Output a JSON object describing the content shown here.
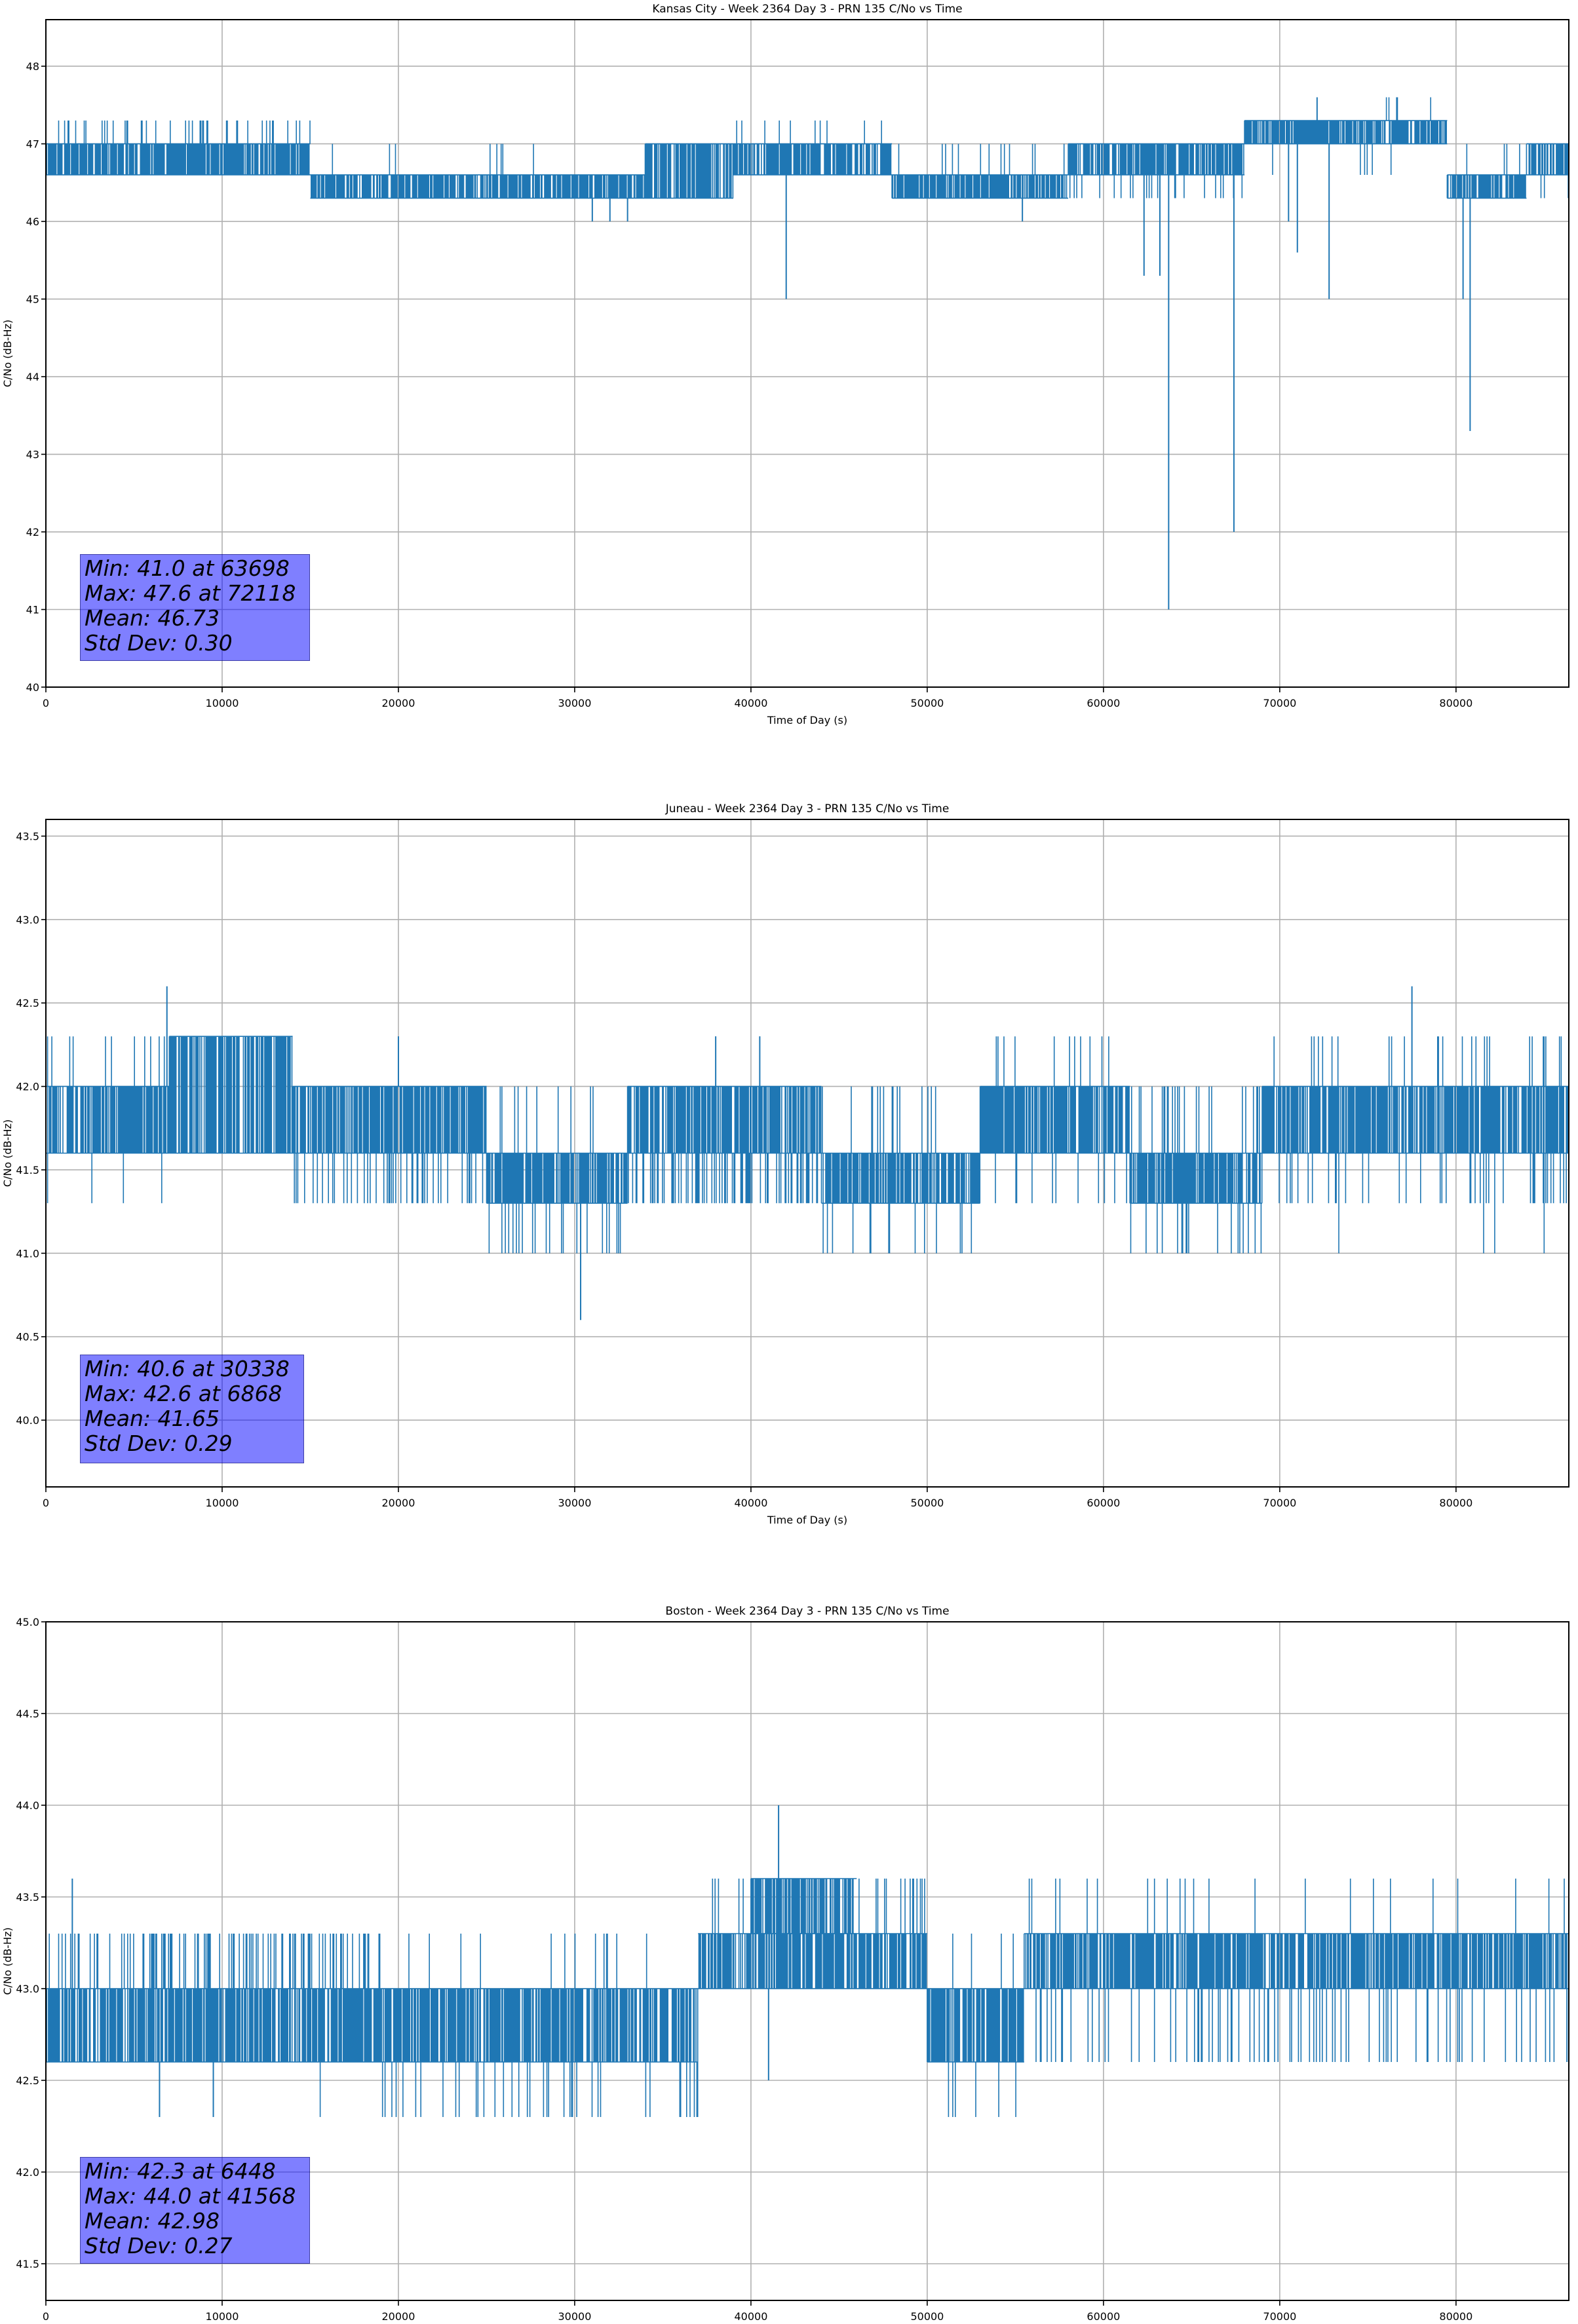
{
  "colors": {
    "series": "#1f77b4",
    "grid": "#b0b0b0",
    "stats_box": "#8080ff"
  },
  "chart_data": [
    {
      "type": "line",
      "title": "Kansas City - Week 2364 Day 3 - PRN 135 C/No vs Time",
      "xlabel": "Time of Day (s)",
      "ylabel": "C/No (dB-Hz)",
      "xlim": [
        0,
        86400
      ],
      "ylim": [
        40.0,
        48.6
      ],
      "xticks": [
        0,
        10000,
        20000,
        30000,
        40000,
        50000,
        60000,
        70000,
        80000
      ],
      "yticks": [
        40,
        41,
        42,
        43,
        44,
        45,
        46,
        47,
        48
      ],
      "ytick_decimals": 0,
      "grid": true,
      "stats": [
        "Min: 41.0 at 63698",
        "Max: 47.6 at 72118",
        "Mean: 46.73",
        "Std Dev: 0.30"
      ],
      "segments": [
        {
          "x": [
            0,
            15000
          ],
          "band": [
            46.6,
            47.0
          ],
          "flicks": [
            [
              47.3,
              0.12
            ]
          ]
        },
        {
          "x": [
            15000,
            34000
          ],
          "band": [
            46.3,
            46.6
          ],
          "flicks": [
            [
              47.0,
              0.03
            ]
          ]
        },
        {
          "x": [
            34000,
            39000
          ],
          "band": [
            46.3,
            47.0
          ],
          "flicks": []
        },
        {
          "x": [
            39000,
            48000
          ],
          "band": [
            46.6,
            47.0
          ],
          "flicks": [
            [
              47.3,
              0.08
            ],
            [
              46.3,
              0.01
            ]
          ]
        },
        {
          "x": [
            48000,
            58000
          ],
          "band": [
            46.3,
            46.6
          ],
          "flicks": [
            [
              47.0,
              0.05
            ]
          ]
        },
        {
          "x": [
            58000,
            68000
          ],
          "band": [
            46.6,
            47.0
          ],
          "flicks": [
            [
              46.3,
              0.12
            ]
          ]
        },
        {
          "x": [
            68000,
            79500
          ],
          "band": [
            47.0,
            47.3
          ],
          "flicks": [
            [
              46.6,
              0.03
            ]
          ]
        },
        {
          "x": [
            76000,
            79000
          ],
          "band": [
            47.3,
            47.3
          ],
          "flicks": [
            [
              47.6,
              0.08
            ]
          ]
        },
        {
          "x": [
            79500,
            84000
          ],
          "band": [
            46.3,
            46.6
          ],
          "flicks": [
            [
              47.0,
              0.06
            ]
          ]
        },
        {
          "x": [
            84000,
            86400
          ],
          "band": [
            46.6,
            47.0
          ],
          "flicks": [
            [
              46.3,
              0.1
            ]
          ]
        }
      ],
      "spikes": [
        [
          63698,
          41.0
        ],
        [
          67400,
          42.0
        ],
        [
          62300,
          45.3
        ],
        [
          63200,
          45.3
        ],
        [
          72800,
          45.0
        ],
        [
          70500,
          46.0
        ],
        [
          71000,
          45.6
        ],
        [
          42000,
          45.0
        ],
        [
          80800,
          43.3
        ],
        [
          80400,
          45.0
        ],
        [
          31000,
          46.0
        ],
        [
          32000,
          46.0
        ],
        [
          33000,
          46.0
        ],
        [
          55400,
          46.0
        ],
        [
          72118,
          47.6
        ]
      ]
    },
    {
      "type": "line",
      "title": "Juneau - Week 2364 Day 3 - PRN 135 C/No vs Time",
      "xlabel": "Time of Day (s)",
      "ylabel": "C/No (dB-Hz)",
      "xlim": [
        0,
        86400
      ],
      "ylim": [
        39.6,
        43.6
      ],
      "xticks": [
        0,
        10000,
        20000,
        30000,
        40000,
        50000,
        60000,
        70000,
        80000
      ],
      "yticks": [
        40.0,
        40.5,
        41.0,
        41.5,
        42.0,
        42.5,
        43.0,
        43.5
      ],
      "ytick_decimals": 1,
      "grid": true,
      "stats": [
        "Min: 40.6 at 30338",
        "Max: 42.6 at 6868",
        "Mean: 41.65",
        "Std Dev: 0.29"
      ],
      "segments": [
        {
          "x": [
            0,
            7000
          ],
          "band": [
            41.6,
            42.0
          ],
          "flicks": [
            [
              41.3,
              0.02
            ],
            [
              42.3,
              0.04
            ]
          ]
        },
        {
          "x": [
            7000,
            14000
          ],
          "band": [
            41.6,
            42.3
          ],
          "flicks": []
        },
        {
          "x": [
            14000,
            25000
          ],
          "band": [
            41.6,
            42.0
          ],
          "flicks": [
            [
              41.3,
              0.15
            ]
          ]
        },
        {
          "x": [
            25000,
            33000
          ],
          "band": [
            41.3,
            41.6
          ],
          "flicks": [
            [
              41.0,
              0.15
            ],
            [
              42.0,
              0.08
            ]
          ]
        },
        {
          "x": [
            33000,
            44000
          ],
          "band": [
            41.6,
            42.0
          ],
          "flicks": [
            [
              41.3,
              0.3
            ]
          ]
        },
        {
          "x": [
            44000,
            53000
          ],
          "band": [
            41.3,
            41.6
          ],
          "flicks": [
            [
              41.0,
              0.06
            ],
            [
              42.0,
              0.05
            ]
          ]
        },
        {
          "x": [
            53000,
            61500
          ],
          "band": [
            41.6,
            42.0
          ],
          "flicks": [
            [
              42.3,
              0.06
            ],
            [
              41.3,
              0.05
            ]
          ]
        },
        {
          "x": [
            61500,
            69000
          ],
          "band": [
            41.3,
            41.6
          ],
          "flicks": [
            [
              41.0,
              0.1
            ],
            [
              42.0,
              0.1
            ]
          ]
        },
        {
          "x": [
            69000,
            86400
          ],
          "band": [
            41.6,
            42.0
          ],
          "flicks": [
            [
              42.3,
              0.08
            ],
            [
              41.3,
              0.1
            ],
            [
              41.0,
              0.01
            ]
          ]
        }
      ],
      "spikes": [
        [
          6868,
          42.6
        ],
        [
          30338,
          40.6
        ],
        [
          77500,
          42.6
        ],
        [
          20000,
          42.3
        ],
        [
          38000,
          42.3
        ],
        [
          40500,
          42.3
        ]
      ]
    },
    {
      "type": "line",
      "title": "Boston - Week 2364 Day 3 - PRN 135 C/No vs Time",
      "xlabel": "Time of Day (s)",
      "ylabel": "C/No (dB-Hz)",
      "xlim": [
        0,
        86400
      ],
      "ylim": [
        41.3,
        45.0
      ],
      "xticks": [
        0,
        10000,
        20000,
        30000,
        40000,
        50000,
        60000,
        70000,
        80000
      ],
      "yticks": [
        41.5,
        42.0,
        42.5,
        43.0,
        43.5,
        44.0,
        44.5,
        45.0
      ],
      "ytick_decimals": 1,
      "grid": true,
      "stats": [
        "Min: 42.3 at 6448",
        "Max: 44.0 at 41568",
        "Mean: 42.98",
        "Std Dev: 0.27"
      ],
      "segments": [
        {
          "x": [
            0,
            19000
          ],
          "band": [
            42.6,
            43.0
          ],
          "flicks": [
            [
              43.3,
              0.3
            ],
            [
              42.3,
              0.004
            ]
          ]
        },
        {
          "x": [
            19000,
            37000
          ],
          "band": [
            42.6,
            43.0
          ],
          "flicks": [
            [
              42.3,
              0.1
            ],
            [
              43.3,
              0.04
            ]
          ]
        },
        {
          "x": [
            37000,
            50000
          ],
          "band": [
            43.0,
            43.3
          ],
          "flicks": [
            [
              43.6,
              0.12
            ],
            [
              42.6,
              0.005
            ]
          ]
        },
        {
          "x": [
            40000,
            46000
          ],
          "band": [
            43.3,
            43.6
          ],
          "flicks": []
        },
        {
          "x": [
            50000,
            55500
          ],
          "band": [
            42.6,
            43.0
          ],
          "flicks": [
            [
              42.3,
              0.06
            ],
            [
              43.3,
              0.03
            ]
          ]
        },
        {
          "x": [
            55500,
            86400
          ],
          "band": [
            43.0,
            43.3
          ],
          "flicks": [
            [
              42.6,
              0.12
            ],
            [
              43.6,
              0.03
            ]
          ]
        }
      ],
      "spikes": [
        [
          41568,
          44.0
        ],
        [
          1500,
          43.6
        ],
        [
          6448,
          42.3
        ],
        [
          9500,
          42.3
        ],
        [
          41000,
          42.5
        ]
      ]
    }
  ]
}
